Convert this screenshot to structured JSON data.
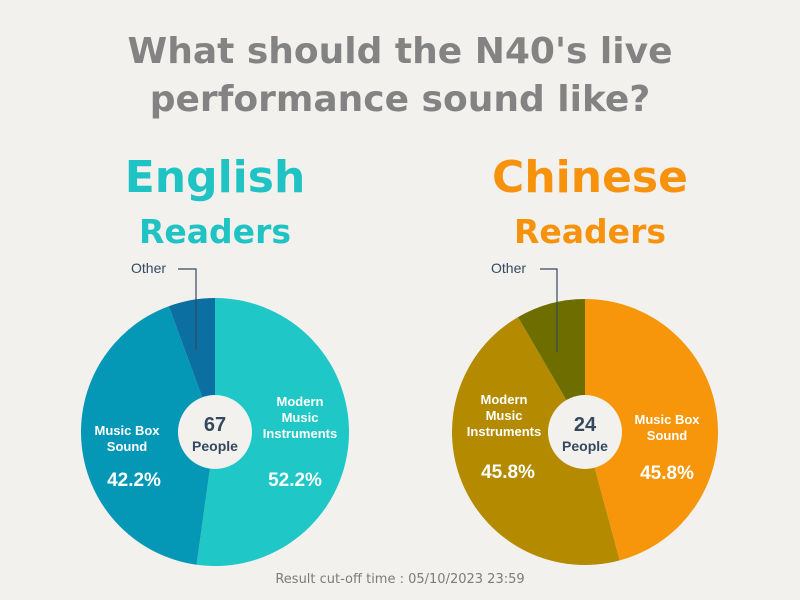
{
  "title_line1": "What should the N40's live",
  "title_line2": "performance sound like?",
  "footer": "Result cut-off time : 05/10/2023 23:59",
  "center_unit": "People",
  "colors": {
    "english_heading": "#1fc3c3",
    "chinese_heading": "#f7920c",
    "label_text": "#34495e"
  },
  "chart_data": [
    {
      "type": "pie",
      "title_line1": "English",
      "title_line2": "Readers",
      "total": "67",
      "slices": [
        {
          "label": "Modern Music Instruments",
          "label_lines": [
            "Modern",
            "Music",
            "Instruments"
          ],
          "value": 52.2,
          "display": "52.2%",
          "color": "#1fc7c6"
        },
        {
          "label": "Music Box Sound",
          "label_lines": [
            "Music Box",
            "Sound"
          ],
          "value": 42.2,
          "display": "42.2%",
          "color": "#0497b6"
        },
        {
          "label": "Other",
          "label_lines": [
            "Other"
          ],
          "value": 5.6,
          "display": "",
          "color": "#0c6fa2"
        }
      ]
    },
    {
      "type": "pie",
      "title_line1": "Chinese",
      "title_line2": "Readers",
      "total": "24",
      "slices": [
        {
          "label": "Music Box Sound",
          "label_lines": [
            "Music Box",
            "Sound"
          ],
          "value": 45.8,
          "display": "45.8%",
          "color": "#f7960b"
        },
        {
          "label": "Modern Music Instruments",
          "label_lines": [
            "Modern",
            "Music",
            "Instruments"
          ],
          "value": 45.8,
          "display": "45.8%",
          "color": "#b38a00"
        },
        {
          "label": "Other",
          "label_lines": [
            "Other"
          ],
          "value": 8.4,
          "display": "",
          "color": "#6e6e00"
        }
      ]
    }
  ]
}
